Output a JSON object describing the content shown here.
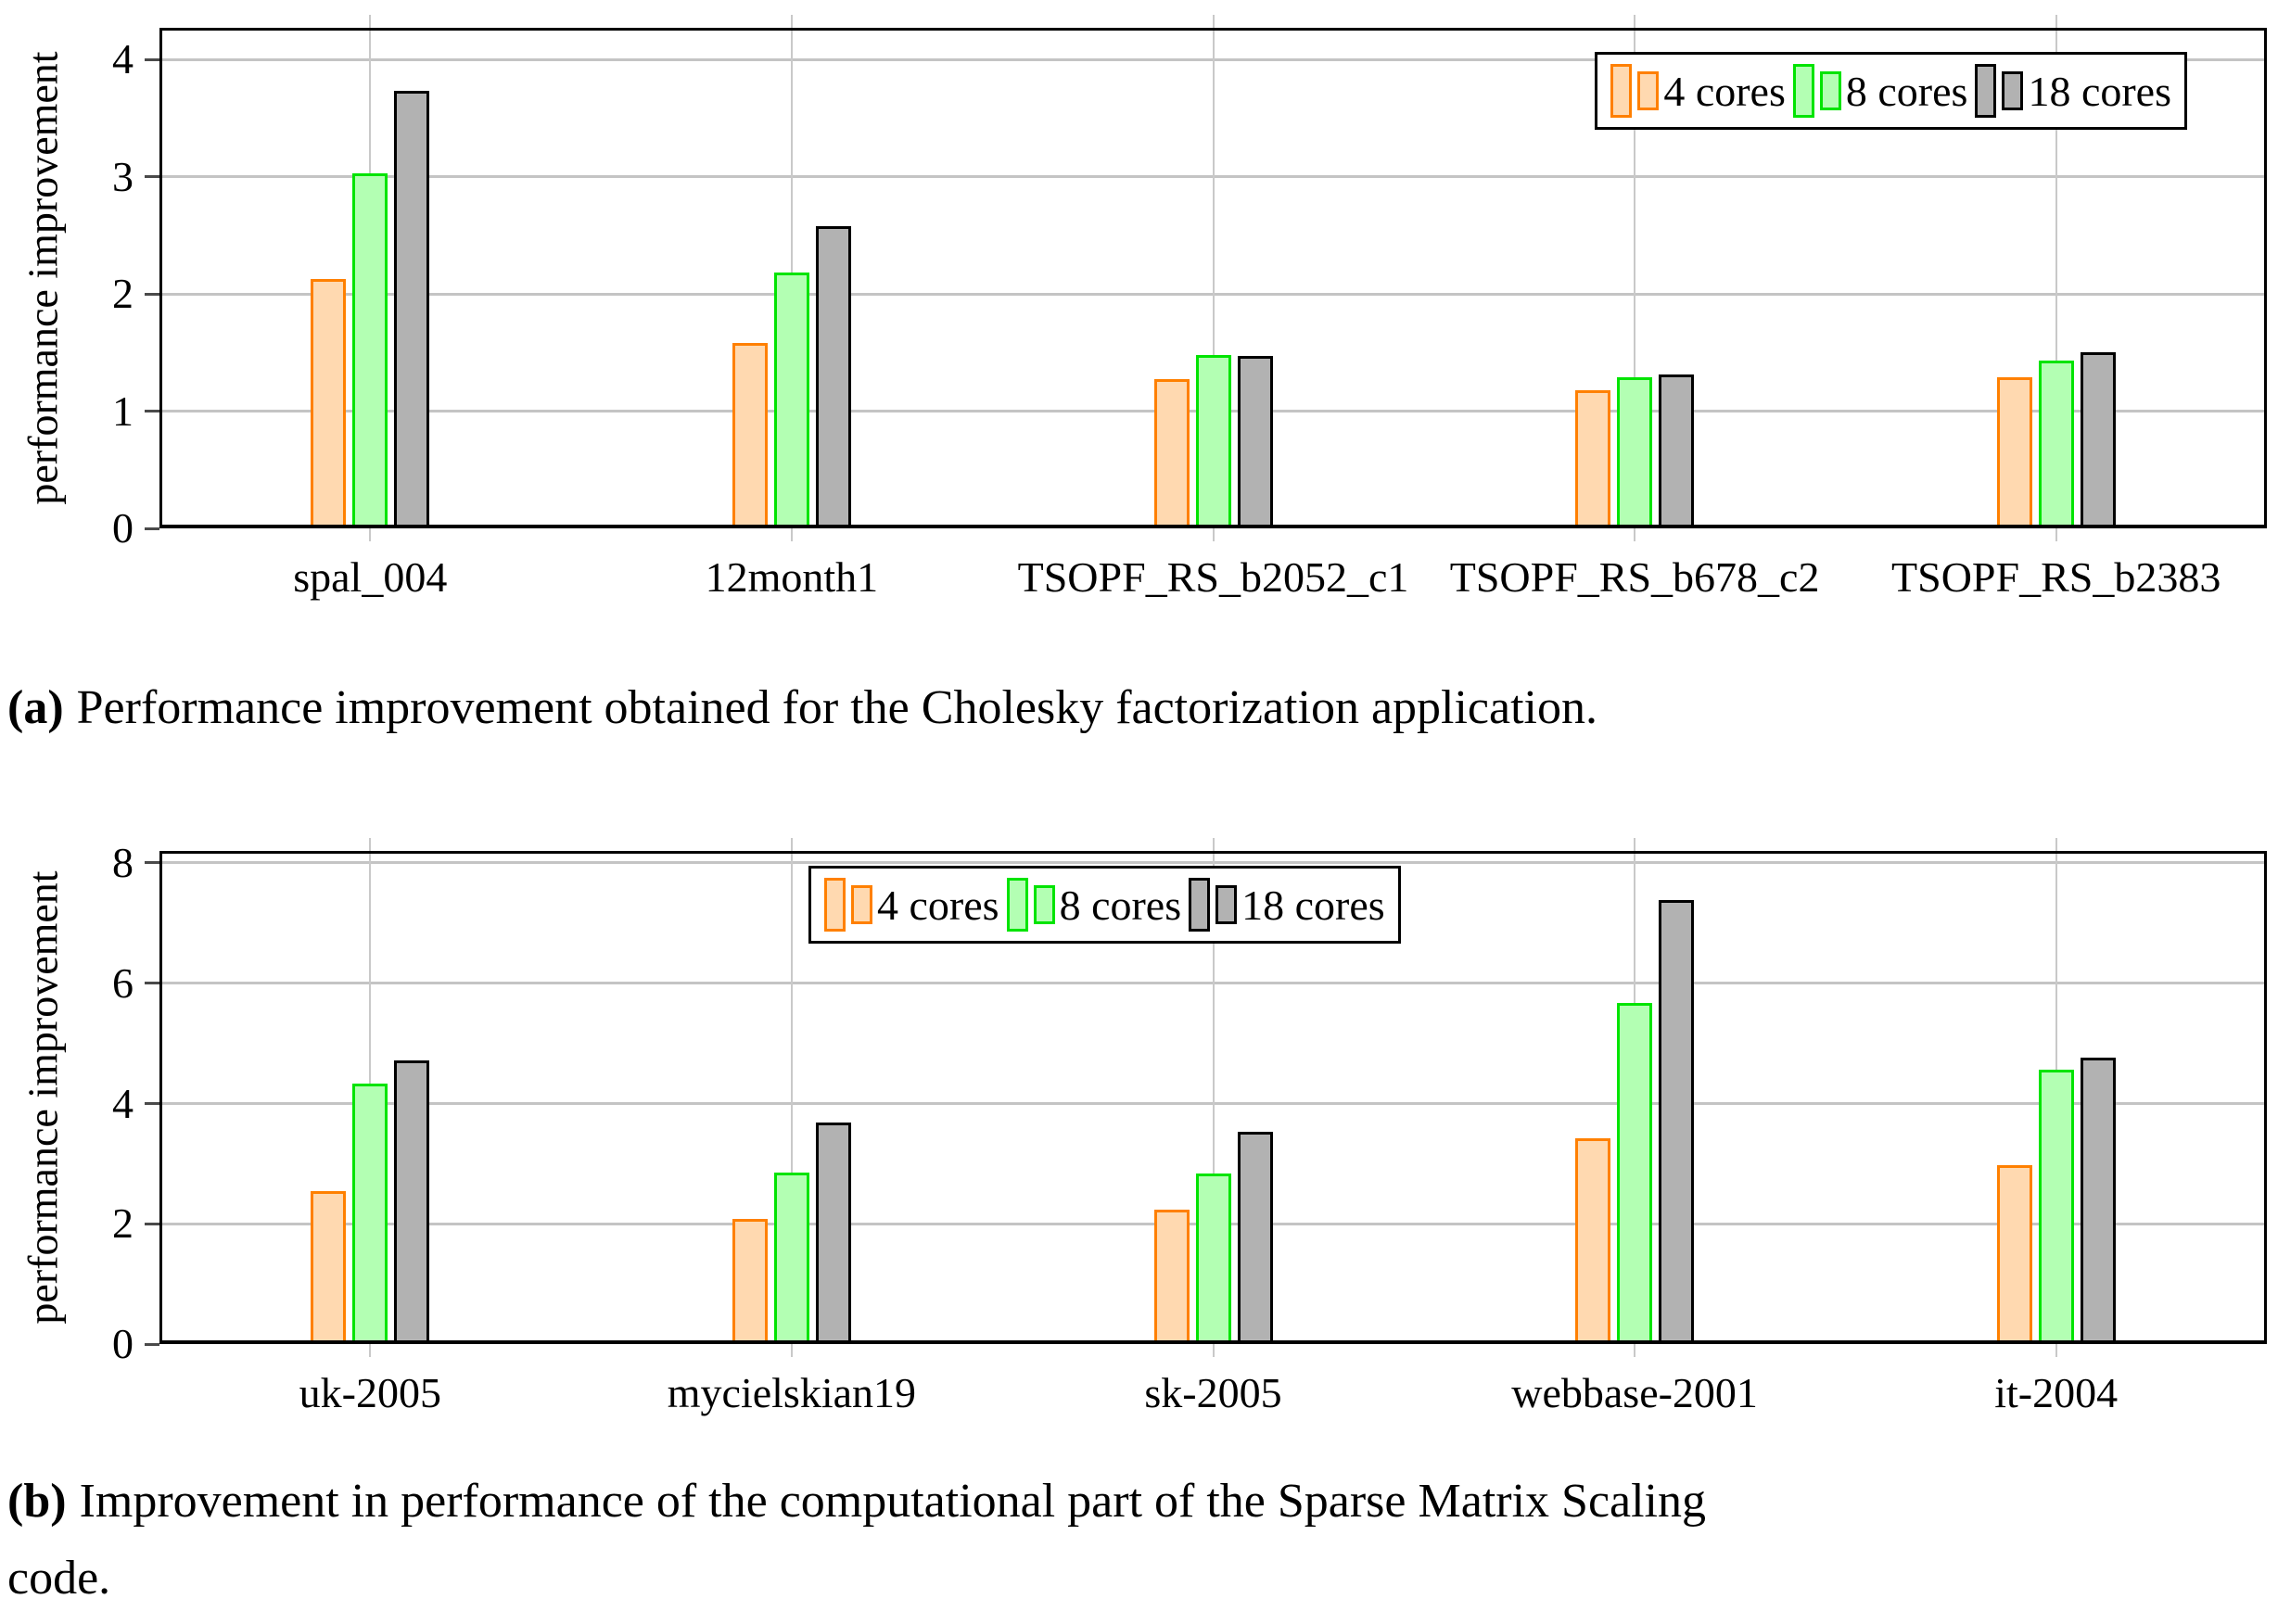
{
  "figure": {
    "captions": [
      {
        "tag": "(a)",
        "lines": [
          "Performance improvement obtained for the Cholesky factorization application."
        ]
      },
      {
        "tag": "(b)",
        "lines": [
          "Improvement in performance of the computational part of the Sparse Matrix Scaling",
          "code."
        ]
      }
    ]
  },
  "chart_data": [
    {
      "type": "bar",
      "ylabel": "performance improvement",
      "categories": [
        "spal_004",
        "12month1",
        "TSOPF_RS_b2052_c1",
        "TSOPF_RS_b678_c2",
        "TSOPF_RS_b2383"
      ],
      "series": [
        {
          "name": "4 cores",
          "border": "#FF8000",
          "fill": "#FFD9B0",
          "values": [
            2.13,
            1.58,
            1.27,
            1.18,
            1.29
          ]
        },
        {
          "name": "8 cores",
          "border": "#00E400",
          "fill": "#B3FFB3",
          "values": [
            3.03,
            2.18,
            1.48,
            1.29,
            1.43
          ]
        },
        {
          "name": "18 cores",
          "border": "#000000",
          "fill": "#B2B2B2",
          "values": [
            3.73,
            2.58,
            1.47,
            1.31,
            1.5
          ]
        }
      ],
      "ylim": [
        0,
        4.27
      ],
      "yticks": [
        0,
        1,
        2,
        3,
        4
      ],
      "grid": true,
      "legend_position": "top-right",
      "grid_color": "#c4c4c4"
    },
    {
      "type": "bar",
      "ylabel": "performance improvement",
      "categories": [
        "uk-2005",
        "mycielskian19",
        "sk-2005",
        "webbase-2001",
        "it-2004"
      ],
      "series": [
        {
          "name": "4 cores",
          "border": "#FF8000",
          "fill": "#FFD9B0",
          "values": [
            2.55,
            2.08,
            2.24,
            3.42,
            2.97
          ]
        },
        {
          "name": "8 cores",
          "border": "#00E400",
          "fill": "#B3FFB3",
          "values": [
            4.33,
            2.85,
            2.84,
            5.67,
            4.57
          ]
        },
        {
          "name": "18 cores",
          "border": "#000000",
          "fill": "#B2B2B2",
          "values": [
            4.72,
            3.68,
            3.53,
            7.38,
            4.76
          ]
        }
      ],
      "ylim": [
        0,
        8.2
      ],
      "yticks": [
        0,
        2,
        4,
        6,
        8
      ],
      "grid": true,
      "legend_position": "top-center",
      "grid_color": "#c4c4c4"
    }
  ]
}
